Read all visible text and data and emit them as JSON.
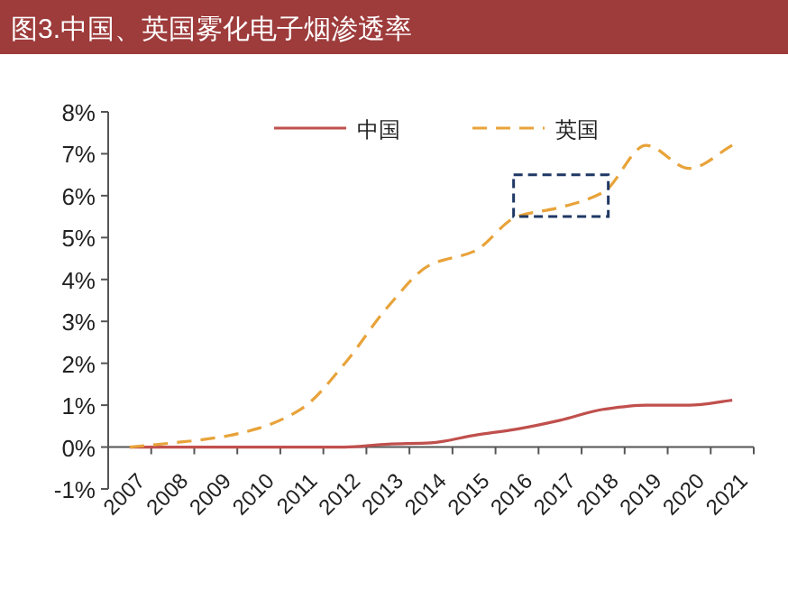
{
  "chart_data": {
    "type": "line",
    "title": "图3.中国、英国雾化电子烟渗透率",
    "categories": [
      "2007",
      "2008",
      "2009",
      "2010",
      "2011",
      "2012",
      "2013",
      "2014",
      "2015",
      "2016",
      "2017",
      "2018",
      "2019",
      "2020",
      "2021"
    ],
    "series": [
      {
        "name": "中国",
        "color": "#c0504d",
        "line_style": "solid",
        "values": [
          0,
          0,
          0,
          0,
          0,
          0,
          0.07,
          0.1,
          0.28,
          0.43,
          0.64,
          0.9,
          1.0,
          1.0,
          1.12
        ]
      },
      {
        "name": "英国",
        "color": "#e8a33a",
        "line_style": "dashed",
        "values": [
          0,
          0.1,
          0.22,
          0.45,
          0.92,
          2.0,
          3.35,
          4.36,
          4.67,
          5.5,
          5.72,
          6.08,
          7.2,
          6.65,
          7.2
        ]
      }
    ],
    "ylim": [
      -1,
      8
    ],
    "yticks": [
      {
        "value": -1,
        "label": "-1%"
      },
      {
        "value": 0,
        "label": "0%"
      },
      {
        "value": 1,
        "label": "1%"
      },
      {
        "value": 2,
        "label": "2%"
      },
      {
        "value": 3,
        "label": "3%"
      },
      {
        "value": 4,
        "label": "4%"
      },
      {
        "value": 5,
        "label": "5%"
      },
      {
        "value": 6,
        "label": "6%"
      },
      {
        "value": 7,
        "label": "7%"
      },
      {
        "value": 8,
        "label": "8%"
      }
    ],
    "legend": "top"
  }
}
